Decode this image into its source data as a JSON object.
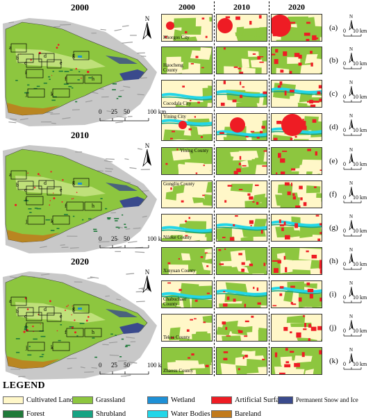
{
  "overview_maps": [
    {
      "year": "2000",
      "scalebar": {
        "ticks": [
          "0",
          "25",
          "50",
          "100 km"
        ]
      }
    },
    {
      "year": "2010",
      "scalebar": {
        "ticks": [
          "0",
          "25",
          "50",
          "100 km"
        ]
      }
    },
    {
      "year": "2020",
      "scalebar": {
        "ticks": [
          "0",
          "25",
          "50",
          "100 km"
        ]
      }
    }
  ],
  "overview_box_labels": [
    "a",
    "b",
    "c",
    "d",
    "e",
    "f",
    "g",
    "h",
    "i",
    "j",
    "k"
  ],
  "north_arrow_label": "N",
  "detail_columns": [
    "2000",
    "2010",
    "2020"
  ],
  "detail_rows": [
    {
      "label": "(a)",
      "place": "Khorgos City"
    },
    {
      "label": "(b)",
      "place": "Huocheng County"
    },
    {
      "label": "(c)",
      "place": "Cocodala City"
    },
    {
      "label": "(d)",
      "place": "Yining City"
    },
    {
      "label": "(e)",
      "place": "Yining County"
    },
    {
      "label": "(f)",
      "place": "Gongliu County"
    },
    {
      "label": "(g)",
      "place": "Nileke County"
    },
    {
      "label": "(h)",
      "place": "Xinyuan County"
    },
    {
      "label": "(i)",
      "place": "Chabuchaer County"
    },
    {
      "label": "(j)",
      "place": "Tekes County"
    },
    {
      "label": "(k)",
      "place": "Zhaosu County"
    }
  ],
  "mini_scalebar": {
    "zero": "0",
    "dist": "10 km",
    "north": "N"
  },
  "legend": {
    "title": "LEGEND",
    "items": [
      {
        "label": "Cultivated Land",
        "color": "#fff7c8"
      },
      {
        "label": "Grassland",
        "color": "#8dc63f"
      },
      {
        "label": "Wetland",
        "color": "#1e90d6"
      },
      {
        "label": "Artificial Surfaces",
        "color": "#ee1c24"
      },
      {
        "label": "Permanent Snow and Ice",
        "color": "#3a4a8c"
      },
      {
        "label": "Forest",
        "color": "#1f7a3a"
      },
      {
        "label": "Shrubland",
        "color": "#16a383"
      },
      {
        "label": "Water Bodies",
        "color": "#22d6e8"
      },
      {
        "label": "Bareland",
        "color": "#c17a1c"
      }
    ]
  }
}
